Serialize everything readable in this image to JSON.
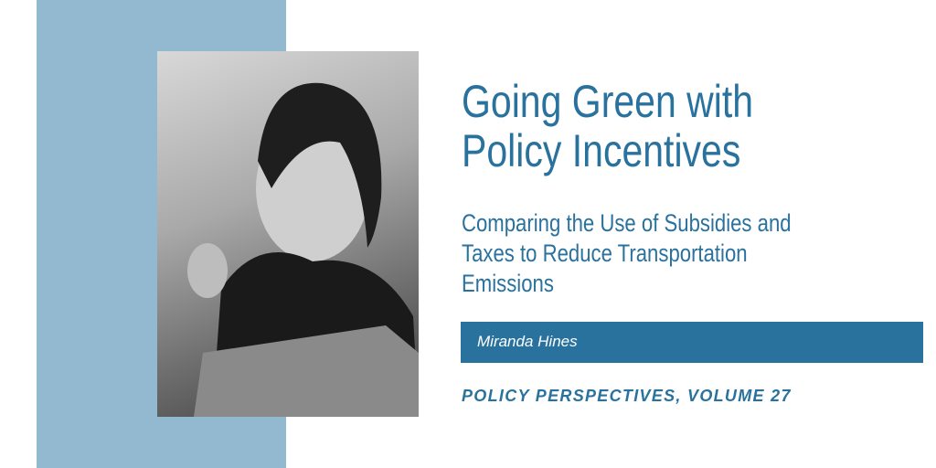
{
  "title_lines": [
    "Going Green with",
    "Policy Incentives"
  ],
  "subtitle_lines": [
    "Comparing the Use of Subsidies and",
    "Taxes to Reduce Transportation",
    "Emissions"
  ],
  "author": "Miranda Hines",
  "series": "POLICY PERSPECTIVES, VOLUME 27",
  "colors": {
    "accent": "#2a729e",
    "panel": "#93b9d1",
    "background": "#ffffff"
  }
}
